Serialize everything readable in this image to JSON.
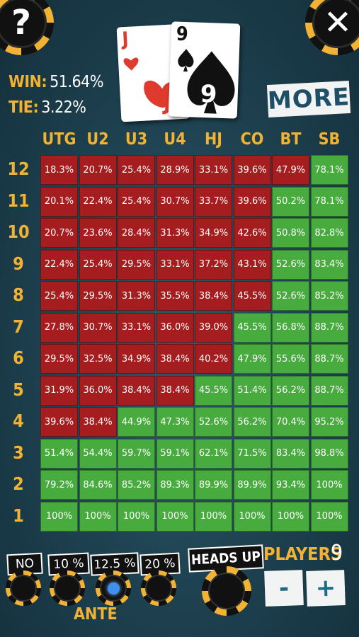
{
  "header": {
    "help_label": "?",
    "close_label": "✕",
    "win_label": "WIN:",
    "win_value": "51.64%",
    "tie_label": "TIE:",
    "tie_value": "3.22%",
    "more_label": "MORE"
  },
  "hand": [
    {
      "rank": "J",
      "suit": "hearts",
      "color": "#e03a2e"
    },
    {
      "rank": "9",
      "suit": "spades",
      "color": "#111111"
    }
  ],
  "grid": {
    "columns": [
      "UTG",
      "U2",
      "U3",
      "U4",
      "HJ",
      "CO",
      "BT",
      "SB"
    ],
    "rows": [
      {
        "label": "12",
        "values": [
          "18.3%",
          "20.7%",
          "25.4%",
          "28.9%",
          "33.1%",
          "39.6%",
          "47.9%",
          "78.1%"
        ],
        "status": [
          "r",
          "r",
          "r",
          "r",
          "r",
          "r",
          "r",
          "g"
        ]
      },
      {
        "label": "11",
        "values": [
          "20.1%",
          "22.4%",
          "25.4%",
          "30.7%",
          "33.7%",
          "39.6%",
          "50.2%",
          "78.1%"
        ],
        "status": [
          "r",
          "r",
          "r",
          "r",
          "r",
          "r",
          "g",
          "g"
        ]
      },
      {
        "label": "10",
        "values": [
          "20.7%",
          "23.6%",
          "28.4%",
          "31.3%",
          "34.9%",
          "42.6%",
          "50.8%",
          "82.8%"
        ],
        "status": [
          "r",
          "r",
          "r",
          "r",
          "r",
          "r",
          "g",
          "g"
        ]
      },
      {
        "label": "9",
        "values": [
          "22.4%",
          "25.4%",
          "29.5%",
          "33.1%",
          "37.2%",
          "43.1%",
          "52.6%",
          "83.4%"
        ],
        "status": [
          "r",
          "r",
          "r",
          "r",
          "r",
          "r",
          "g",
          "g"
        ]
      },
      {
        "label": "8",
        "values": [
          "25.4%",
          "29.5%",
          "31.3%",
          "35.5%",
          "38.4%",
          "45.5%",
          "52.6%",
          "85.2%"
        ],
        "status": [
          "r",
          "r",
          "r",
          "r",
          "r",
          "r",
          "g",
          "g"
        ]
      },
      {
        "label": "7",
        "values": [
          "27.8%",
          "30.7%",
          "33.1%",
          "36.0%",
          "39.0%",
          "45.5%",
          "56.8%",
          "88.7%"
        ],
        "status": [
          "r",
          "r",
          "r",
          "r",
          "r",
          "g",
          "g",
          "g"
        ]
      },
      {
        "label": "6",
        "values": [
          "29.5%",
          "32.5%",
          "34.9%",
          "38.4%",
          "40.2%",
          "47.9%",
          "55.6%",
          "88.7%"
        ],
        "status": [
          "r",
          "r",
          "r",
          "r",
          "r",
          "g",
          "g",
          "g"
        ]
      },
      {
        "label": "5",
        "values": [
          "31.9%",
          "36.0%",
          "38.4%",
          "38.4%",
          "45.5%",
          "51.4%",
          "56.2%",
          "88.7%"
        ],
        "status": [
          "r",
          "r",
          "r",
          "r",
          "g",
          "g",
          "g",
          "g"
        ]
      },
      {
        "label": "4",
        "values": [
          "39.6%",
          "38.4%",
          "44.9%",
          "47.3%",
          "52.6%",
          "56.2%",
          "70.4%",
          "95.2%"
        ],
        "status": [
          "r",
          "r",
          "g",
          "g",
          "g",
          "g",
          "g",
          "g"
        ]
      },
      {
        "label": "3",
        "values": [
          "51.4%",
          "54.4%",
          "59.7%",
          "59.1%",
          "62.1%",
          "71.5%",
          "83.4%",
          "98.8%"
        ],
        "status": [
          "g",
          "g",
          "g",
          "g",
          "g",
          "g",
          "g",
          "g"
        ]
      },
      {
        "label": "2",
        "values": [
          "79.2%",
          "84.6%",
          "85.2%",
          "89.3%",
          "89.9%",
          "89.9%",
          "93.4%",
          "100%"
        ],
        "status": [
          "g",
          "g",
          "g",
          "g",
          "g",
          "g",
          "g",
          "g"
        ]
      },
      {
        "label": "1",
        "values": [
          "100%",
          "100%",
          "100%",
          "100%",
          "100%",
          "100%",
          "100%",
          "100%"
        ],
        "status": [
          "g",
          "g",
          "g",
          "g",
          "g",
          "g",
          "g",
          "g"
        ]
      }
    ],
    "colors": {
      "r": "#a51d1f",
      "g": "#47ab3e"
    }
  },
  "ante": {
    "caption": "ANTE",
    "options": [
      {
        "label": "NO",
        "selected": false
      },
      {
        "label": "10 %",
        "selected": false
      },
      {
        "label": "12.5 %",
        "selected": true
      },
      {
        "label": "20 %",
        "selected": false
      }
    ]
  },
  "heads_up": {
    "label": "HEADS UP"
  },
  "players": {
    "label": "PLAYERS",
    "count": "9",
    "minus": "-",
    "plus": "+"
  }
}
